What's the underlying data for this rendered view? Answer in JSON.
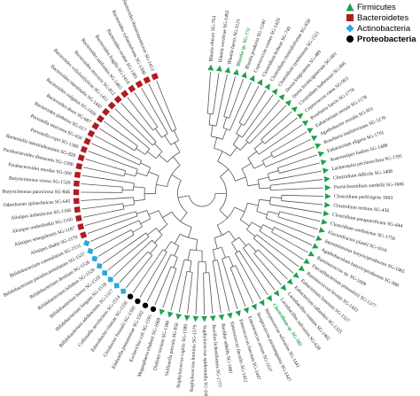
{
  "legend": [
    {
      "label": "Firmicutes",
      "shape": "triangle",
      "color": "#1fa14a"
    },
    {
      "label": "Bacteroidetes",
      "shape": "square",
      "color": "#b01c22"
    },
    {
      "label": "Actinobacteria",
      "shape": "diamond",
      "color": "#2aa7de"
    },
    {
      "label": "Proteobacteria",
      "shape": "circle",
      "color": "#000000",
      "bold": true
    }
  ],
  "colors": {
    "Firmicutes": "#1fa14a",
    "Bacteroidetes": "#b01c22",
    "Actinobacteria": "#2aa7de",
    "Proteobacteria": "#000000",
    "branch": "#555555",
    "label": "#222222",
    "highlight": "#1fa14a"
  },
  "leaves": [
    {
      "label": "Blautia obeum SG-764",
      "group": "Firmicutes"
    },
    {
      "label": "Blautia wexlerae SG-1462",
      "group": "Firmicutes"
    },
    {
      "label": "Blautia faecis SG-1121",
      "group": "Firmicutes"
    },
    {
      "label": "Blautia sp. SG-772",
      "group": "Firmicutes",
      "highlight": true
    },
    {
      "label": "Blautia producta SG-1240",
      "group": "Firmicutes"
    },
    {
      "label": "Coprococcus comes SG-1429",
      "group": "Firmicutes"
    },
    {
      "label": "Clostridium bolteae SG-749",
      "group": "Firmicutes"
    },
    {
      "label": "Clostridium clostridioforme SG-658",
      "group": "Firmicutes"
    },
    {
      "label": "Clostridium symbiosum SG-1521",
      "group": "Firmicutes"
    },
    {
      "label": "Dorea longicatena SG-489",
      "group": "Firmicutes"
    },
    {
      "label": "Dorea formicigenerans SG-601",
      "group": "Firmicutes"
    },
    {
      "label": "Clostridium hathewayi SG-895",
      "group": "Firmicutes"
    },
    {
      "label": "Coprococcus catus SG-963",
      "group": "Firmicutes"
    },
    {
      "label": "Roseburia faecis SG-1778",
      "group": "Firmicutes"
    },
    {
      "label": "Eubacterium rectale SG-1178",
      "group": "Firmicutes"
    },
    {
      "label": "Agathobacter rectalis SG-951",
      "group": "Firmicutes"
    },
    {
      "label": "Roseburia inulinivorans SG-1170",
      "group": "Firmicutes"
    },
    {
      "label": "Eubacterium eligens SG-1791",
      "group": "Firmicutes"
    },
    {
      "label": "Anaerostipes hadrus SG-1408",
      "group": "Firmicutes"
    },
    {
      "label": "Lachnospira pectinoschiza SG-1391",
      "group": "Firmicutes"
    },
    {
      "label": "Clostridium difficile SG-1408",
      "group": "Firmicutes"
    },
    {
      "label": "Paeniclostridium sordellii SG-1606",
      "group": "Firmicutes"
    },
    {
      "label": "Clostridium perfringens 1603",
      "group": "Firmicutes"
    },
    {
      "label": "Clostridium tertium SG-436",
      "group": "Firmicutes"
    },
    {
      "label": "Clostridium paraputrificum SG-444",
      "group": "Firmicutes"
    },
    {
      "label": "Clostridium sardiniense SG-1756",
      "group": "Firmicutes"
    },
    {
      "label": "Flavonifractor plautii SG-1616",
      "group": "Firmicutes"
    },
    {
      "label": "Intestinimonas butyriciproducens SG-1065",
      "group": "Firmicutes"
    },
    {
      "label": "Agathobaculum butyriciproducens SG-980",
      "group": "Firmicutes"
    },
    {
      "label": "Ruminococcus sp. SG-1609",
      "group": "Firmicutes"
    },
    {
      "label": "Faecalibacterium prausnitzii SG-1377",
      "group": "Firmicutes"
    },
    {
      "label": "Ruminococcus bromii SG-1453",
      "group": "Firmicutes"
    },
    {
      "label": "Eubacterium limosum SG-1327",
      "group": "Firmicutes"
    },
    {
      "label": "Eubacterium callanderi SG-1325",
      "group": "Firmicutes"
    },
    {
      "label": "Lactobacillus ruminis SG-1402",
      "group": "Firmicutes"
    },
    {
      "label": "Lactobacillus salivarius SG-628",
      "group": "Firmicutes"
    },
    {
      "label": "Clostridium sp. SG-502",
      "group": "Firmicutes",
      "highlight": true
    },
    {
      "label": "Streptococcus salivarius SG-1441",
      "group": "Firmicutes"
    },
    {
      "label": "Streptococcus parasanguinis SG-1447",
      "group": "Firmicutes"
    },
    {
      "label": "Enterococcus avium SG-1637",
      "group": "Firmicutes"
    },
    {
      "label": "Enterococcus faecium SG-1447",
      "group": "Firmicutes"
    },
    {
      "label": "Enterococcus faecalis SG-1412",
      "group": "Firmicutes"
    },
    {
      "label": "Bacillus subtilis SG-1681",
      "group": "Firmicutes"
    },
    {
      "label": "Bacillus licheniformis SG-1777",
      "group": "Firmicutes"
    },
    {
      "label": "Staphylococcus epidermidis SG-1680",
      "group": "Firmicutes"
    },
    {
      "label": "Staphylococcus hominis SG-1579",
      "group": "Firmicutes"
    },
    {
      "label": "Staphylococcus capitis SG-1589",
      "group": "Firmicutes"
    },
    {
      "label": "Veillonella parvula SG-956",
      "group": "Firmicutes"
    },
    {
      "label": "Dialister invisus SG-1380",
      "group": "Firmicutes"
    },
    {
      "label": "Megasphaera elsdenii SG-1669",
      "group": "Firmicutes"
    },
    {
      "label": "Escherichia coli SG-1591",
      "group": "Proteobacteria"
    },
    {
      "label": "Klebsiella pneumoniae SG-1502",
      "group": "Proteobacteria"
    },
    {
      "label": "Citrobacter freundii SG-1500",
      "group": "Proteobacteria"
    },
    {
      "label": "Enterobacter cloacae SG-1556",
      "group": "Proteobacteria"
    },
    {
      "label": "Collinsella aerofaciens SG-1514",
      "group": "Actinobacteria"
    },
    {
      "label": "Bifidobacterium adolescentis SG-1517",
      "group": "Actinobacteria"
    },
    {
      "label": "Bifidobacterium longum SG-1518",
      "group": "Actinobacteria"
    },
    {
      "label": "Bifidobacterium breve SG-1519",
      "group": "Actinobacteria"
    },
    {
      "label": "Bifidobacterium bifidum SG-1520",
      "group": "Actinobacteria"
    },
    {
      "label": "Bifidobacterium dentium SG-1526",
      "group": "Actinobacteria"
    },
    {
      "label": "Bifidobacterium pseudocatenulatum SG-1537",
      "group": "Actinobacteria"
    },
    {
      "label": "Bifidobacterium catenulatum SG-1531",
      "group": "Actinobacteria"
    },
    {
      "label": "Alistipes shahii SG-1170",
      "group": "Bacteroidetes"
    },
    {
      "label": "Alistipes senegalensis SG-1187",
      "group": "Bacteroidetes"
    },
    {
      "label": "Alistipes onderdonkii SG-1160",
      "group": "Bacteroidetes"
    },
    {
      "label": "Alistipes indistinctus SG-1166",
      "group": "Bacteroidetes"
    },
    {
      "label": "Odoribacter splanchnicus SG-645",
      "group": "Bacteroidetes"
    },
    {
      "label": "Butyricimonas paravirosa SG-846",
      "group": "Bacteroidetes"
    },
    {
      "label": "Butyricimonas virosa SG-1520",
      "group": "Bacteroidetes"
    },
    {
      "label": "Parabacteroides merdae SG-560",
      "group": "Bacteroidetes"
    },
    {
      "label": "Parabacteroides distasonis SG-1390",
      "group": "Bacteroidetes"
    },
    {
      "label": "Barnesiella intestinihominis SG-829",
      "group": "Bacteroidetes"
    },
    {
      "label": "Prevotella copri SG-1389",
      "group": "Bacteroidetes"
    },
    {
      "label": "Prevotella stercorea SG-658",
      "group": "Bacteroidetes"
    },
    {
      "label": "Bacteroides plebeius SG-617",
      "group": "Bacteroidetes"
    },
    {
      "label": "Bacteroides dorei SG-687",
      "group": "Bacteroidetes"
    },
    {
      "label": "Bacteroides vulgatus SG-1426",
      "group": "Bacteroidetes"
    },
    {
      "label": "Bacteroides intestinalis SG-1442",
      "group": "Bacteroidetes"
    },
    {
      "label": "Bacteroides cellulosilyticus SG-1451",
      "group": "Bacteroidetes"
    },
    {
      "label": "Bacteroides stercoris SG-812",
      "group": "Bacteroidetes"
    },
    {
      "label": "Bacteroides uniformis SG-1465",
      "group": "Bacteroidetes"
    },
    {
      "label": "Bacteroides fragilis SG-1414",
      "group": "Bacteroidetes"
    },
    {
      "label": "Bacteroides ovatus SG-1381",
      "group": "Bacteroidetes"
    },
    {
      "label": "Bacteroides xylanisolvens SG-1380",
      "group": "Bacteroidetes"
    },
    {
      "label": "Bacteroides thetaiotaomicron SG-1413",
      "group": "Bacteroidetes"
    }
  ]
}
